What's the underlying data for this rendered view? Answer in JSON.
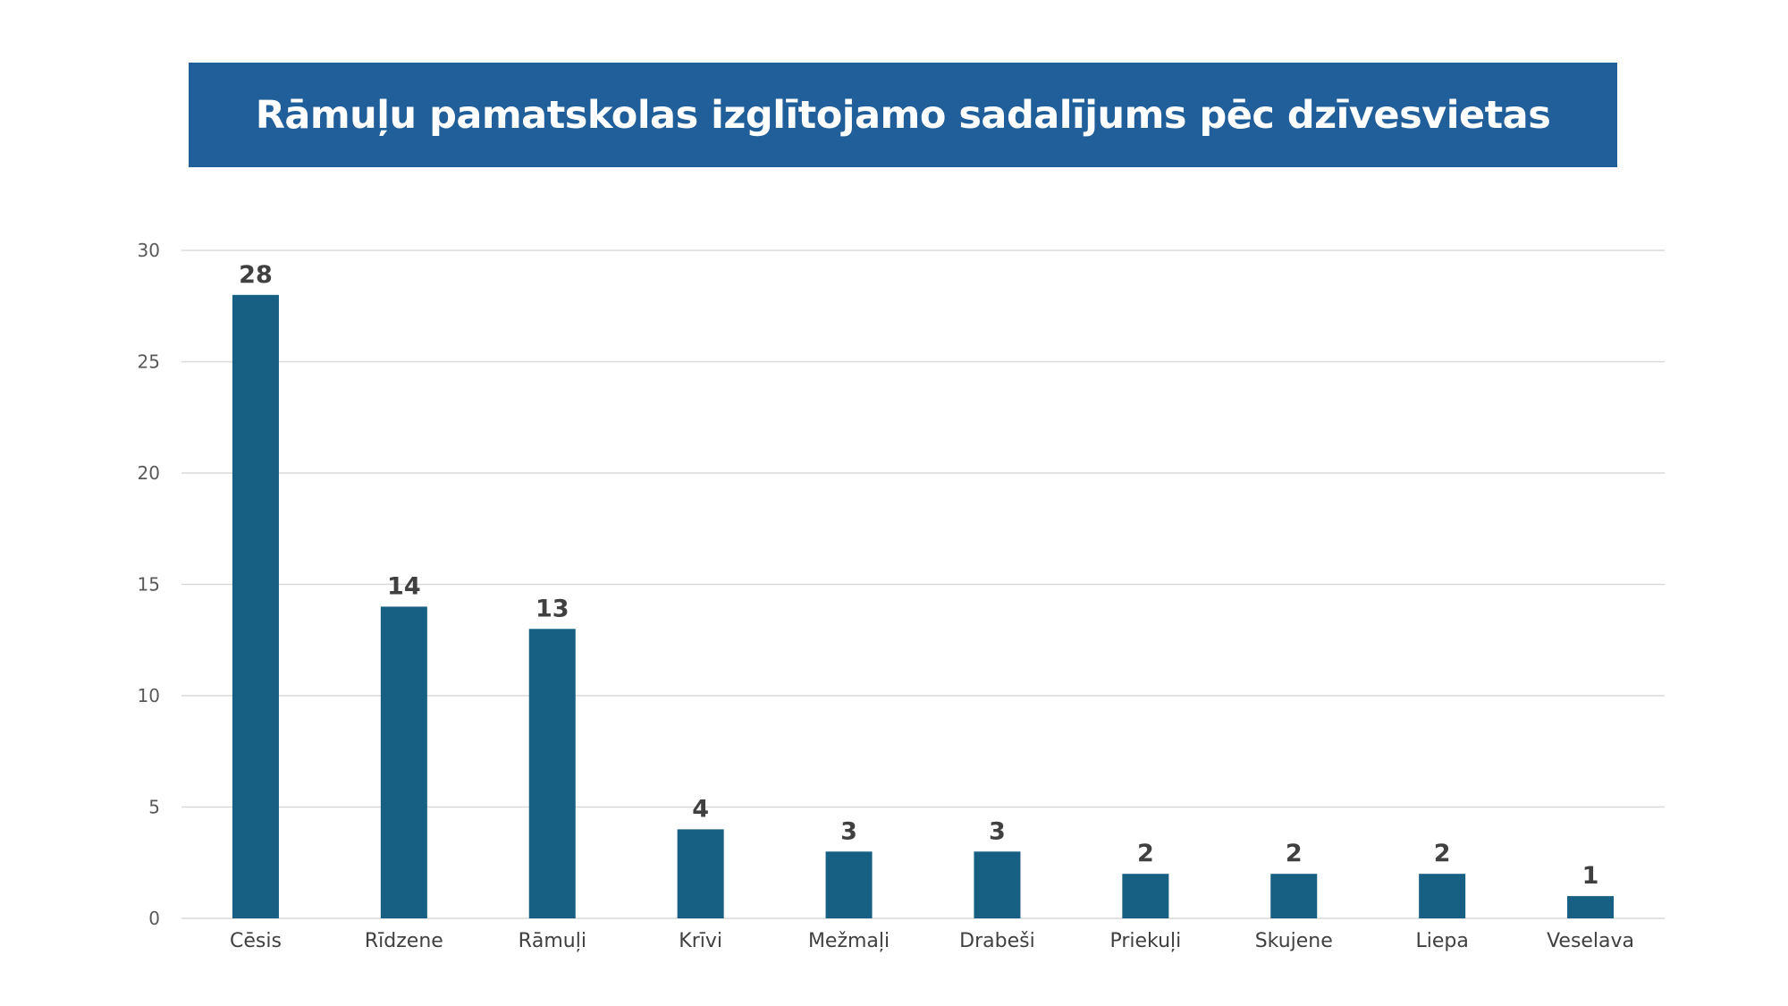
{
  "title": "Rāmuļu pamatskolas izglītojamo sadalījums pēc dzīvesvietas",
  "colors": {
    "banner": "#215f9a",
    "bar": "#175f83",
    "grid": "#d9d9d9"
  },
  "chart_data": {
    "type": "bar",
    "title": "Rāmuļu pamatskolas izglītojamo sadalījums pēc dzīvesvietas",
    "categories": [
      "Cēsis",
      "Rīdzene",
      "Rāmuļi",
      "Krīvi",
      "Mežmaļi",
      "Drabeši",
      "Priekuļi",
      "Skujene",
      "Liepa",
      "Veselava"
    ],
    "values": [
      28,
      14,
      13,
      4,
      3,
      3,
      2,
      2,
      2,
      1
    ],
    "xlabel": "",
    "ylabel": "",
    "ylim": [
      0,
      30
    ],
    "yticks": [
      0,
      5,
      10,
      15,
      20,
      25,
      30
    ],
    "grid": true,
    "data_labels": true,
    "legend": "none"
  }
}
